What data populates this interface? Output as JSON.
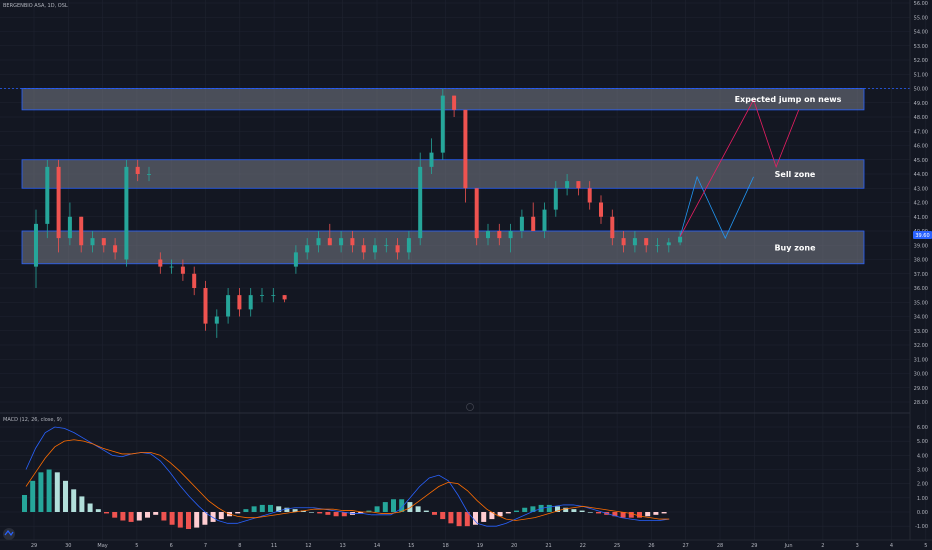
{
  "header": {
    "symbol_title": "BERGENBIO ASA, 1D, OSL"
  },
  "macd_title": "MACD (12, 26, close, 9)",
  "price_tag": "39.60",
  "colors": {
    "up": "#26a69a",
    "down": "#ef5350",
    "zone_fill": "#787b86",
    "zone_border": "#2962ff",
    "macd_line": "#2962ff",
    "signal_line": "#ff6d00",
    "bg": "#131722",
    "grid": "#1f2330"
  },
  "chart_data": [
    {
      "type": "candlestick",
      "title": "",
      "price_axis": {
        "min": 28,
        "max": 56,
        "ticks": [
          "56.00",
          "55.00",
          "54.00",
          "53.00",
          "52.00",
          "51.00",
          "50.00",
          "49.00",
          "48.00",
          "47.00",
          "46.00",
          "45.00",
          "44.00",
          "43.00",
          "42.00",
          "41.00",
          "40.00",
          "39.00",
          "38.00",
          "37.00",
          "36.00",
          "35.00",
          "34.00",
          "33.00",
          "32.00",
          "31.00",
          "30.00",
          "29.00",
          "28.00"
        ]
      },
      "time_axis_labels": [
        "29",
        "30",
        "May",
        "5",
        "6",
        "7",
        "8",
        "11",
        "12",
        "13",
        "14",
        "15",
        "18",
        "19",
        "20",
        "21",
        "22",
        "25",
        "26",
        "27",
        "28",
        "29",
        "Jun",
        "2",
        "3",
        "4",
        "5",
        "8",
        "9"
      ],
      "candles": [
        [
          37.5,
          41.5,
          36.0,
          40.5
        ],
        [
          40.5,
          45.0,
          39.5,
          44.5
        ],
        [
          44.5,
          45.0,
          38.5,
          39.5
        ],
        [
          39.5,
          42.0,
          39.0,
          41.0
        ],
        [
          41.0,
          41.0,
          38.5,
          39.0
        ],
        [
          39.0,
          40.0,
          38.5,
          39.5
        ],
        [
          39.5,
          39.5,
          38.5,
          39.0
        ],
        [
          39.0,
          39.5,
          38.0,
          38.5
        ],
        [
          38.0,
          45.0,
          37.5,
          44.5
        ],
        [
          44.5,
          45.0,
          43.5,
          44.0
        ],
        [
          44.0,
          44.5,
          43.5,
          44.0
        ],
        [
          38.0,
          38.5,
          37.0,
          37.5
        ],
        [
          37.5,
          38.0,
          37.0,
          37.5
        ],
        [
          37.5,
          38.0,
          36.5,
          37.0
        ],
        [
          37.0,
          37.5,
          35.5,
          36.0
        ],
        [
          36.0,
          36.5,
          33.0,
          33.5
        ],
        [
          33.5,
          34.5,
          32.5,
          34.0
        ],
        [
          34.0,
          36.0,
          33.5,
          35.5
        ],
        [
          35.5,
          36.0,
          34.0,
          34.5
        ],
        [
          34.5,
          36.0,
          34.0,
          35.5
        ],
        [
          35.5,
          36.0,
          35.0,
          35.5
        ],
        [
          35.5,
          36.0,
          35.0,
          35.5
        ],
        [
          35.5,
          35.5,
          35.0,
          35.2
        ],
        [
          37.5,
          39.0,
          37.0,
          38.5
        ],
        [
          38.5,
          39.5,
          38.0,
          39.0
        ],
        [
          39.0,
          40.0,
          38.5,
          39.5
        ],
        [
          39.5,
          40.5,
          39.0,
          39.0
        ],
        [
          39.0,
          40.0,
          38.5,
          39.5
        ],
        [
          39.5,
          40.0,
          38.5,
          39.0
        ],
        [
          39.0,
          39.5,
          38.0,
          38.5
        ],
        [
          38.5,
          39.5,
          38.0,
          39.0
        ],
        [
          39.0,
          39.5,
          38.5,
          39.0
        ],
        [
          39.0,
          39.5,
          38.0,
          38.5
        ],
        [
          38.5,
          40.0,
          38.0,
          39.5
        ],
        [
          39.5,
          45.5,
          39.0,
          44.5
        ],
        [
          44.5,
          46.5,
          44.0,
          45.5
        ],
        [
          45.5,
          50.0,
          45.0,
          49.5
        ],
        [
          49.5,
          49.5,
          48.0,
          48.5
        ],
        [
          48.5,
          48.5,
          42.0,
          43.0
        ],
        [
          43.0,
          43.0,
          39.0,
          39.5
        ],
        [
          39.5,
          40.5,
          39.0,
          40.0
        ],
        [
          40.0,
          40.5,
          39.0,
          39.5
        ],
        [
          39.5,
          40.5,
          38.5,
          40.0
        ],
        [
          40.0,
          41.5,
          39.5,
          41.0
        ],
        [
          41.0,
          42.0,
          40.0,
          40.0
        ],
        [
          40.0,
          42.0,
          39.5,
          41.5
        ],
        [
          41.5,
          43.5,
          41.0,
          43.0
        ],
        [
          43.0,
          44.0,
          42.5,
          43.5
        ],
        [
          43.5,
          43.5,
          42.5,
          43.0
        ],
        [
          43.0,
          43.5,
          41.5,
          42.0
        ],
        [
          42.0,
          42.5,
          40.5,
          41.0
        ],
        [
          41.0,
          41.5,
          39.0,
          39.5
        ],
        [
          39.5,
          40.0,
          38.5,
          39.0
        ],
        [
          39.0,
          40.0,
          38.5,
          39.5
        ],
        [
          39.5,
          39.5,
          38.5,
          39.0
        ],
        [
          39.0,
          39.5,
          38.5,
          39.0
        ],
        [
          39.0,
          39.5,
          38.5,
          39.2
        ],
        [
          39.2,
          40.0,
          39.0,
          39.6
        ]
      ],
      "zones": [
        {
          "name": "Expected jump on news",
          "low": 48.5,
          "high": 50.0
        },
        {
          "name": "Sell zone",
          "low": 43.0,
          "high": 45.0
        },
        {
          "name": "Buy zone",
          "low": 37.7,
          "high": 40.0
        }
      ],
      "projection": {
        "blue": [
          [
            57,
            39.6
          ],
          [
            58.5,
            43.8
          ],
          [
            61,
            39.5
          ],
          [
            63.5,
            43.8
          ]
        ],
        "red": [
          [
            57,
            39.6
          ],
          [
            63.5,
            49.2
          ],
          [
            65.5,
            44.5
          ],
          [
            67.5,
            48.5
          ]
        ]
      },
      "dashed_level": 50.0
    },
    {
      "type": "macd",
      "title": "MACD (12, 26, close, 9)",
      "axis": {
        "min": -2,
        "max": 7,
        "ticks": [
          "6.00",
          "5.00",
          "4.00",
          "3.00",
          "2.00",
          "1.00",
          "0.00",
          "-1.00"
        ]
      },
      "histogram": [
        1.2,
        2.2,
        2.8,
        3.0,
        2.8,
        2.2,
        1.6,
        1.1,
        0.6,
        0.2,
        -0.1,
        -0.4,
        -0.6,
        -0.7,
        -0.6,
        -0.4,
        -0.2,
        -0.6,
        -0.9,
        -1.1,
        -1.2,
        -1.1,
        -0.9,
        -0.7,
        -0.5,
        -0.3,
        -0.1,
        0.2,
        0.4,
        0.5,
        0.5,
        0.4,
        0.3,
        0.2,
        0.1,
        0.0,
        -0.1,
        -0.2,
        -0.3,
        -0.3,
        -0.2,
        -0.1,
        0.1,
        0.4,
        0.7,
        0.9,
        0.9,
        0.7,
        0.4,
        0.1,
        -0.2,
        -0.5,
        -0.8,
        -1.0,
        -1.0,
        -0.9,
        -0.7,
        -0.5,
        -0.3,
        -0.1,
        0.1,
        0.3,
        0.4,
        0.5,
        0.5,
        0.4,
        0.3,
        0.2,
        0.1,
        0.0,
        -0.1,
        -0.2,
        -0.3,
        -0.4,
        -0.4,
        -0.4,
        -0.3,
        -0.2,
        -0.1
      ],
      "macd": [
        3.0,
        4.5,
        5.6,
        6.0,
        5.9,
        5.6,
        5.2,
        4.8,
        4.4,
        4.0,
        3.9,
        4.1,
        4.2,
        4.1,
        3.6,
        2.8,
        1.9,
        1.1,
        0.4,
        -0.2,
        -0.6,
        -0.8,
        -0.8,
        -0.6,
        -0.4,
        -0.2,
        0.0,
        0.2,
        0.3,
        0.3,
        0.3,
        0.2,
        0.1,
        0.0,
        -0.1,
        -0.1,
        -0.2,
        -0.2,
        -0.2,
        0.2,
        1.0,
        1.8,
        2.4,
        2.6,
        2.2,
        1.2,
        0.0,
        -0.8,
        -1.0,
        -1.0,
        -0.8,
        -0.5,
        -0.2,
        0.1,
        0.3,
        0.4,
        0.5,
        0.5,
        0.4,
        0.2,
        0.0,
        -0.2,
        -0.4,
        -0.5,
        -0.6,
        -0.6,
        -0.6,
        -0.5
      ],
      "signal": [
        1.8,
        2.8,
        3.8,
        4.6,
        5.0,
        5.1,
        5.0,
        4.8,
        4.5,
        4.3,
        4.1,
        4.1,
        4.2,
        4.2,
        4.0,
        3.5,
        2.9,
        2.2,
        1.5,
        0.8,
        0.3,
        -0.1,
        -0.3,
        -0.4,
        -0.4,
        -0.3,
        -0.2,
        -0.1,
        0.0,
        0.1,
        0.2,
        0.2,
        0.2,
        0.1,
        0.1,
        0.0,
        0.0,
        -0.1,
        -0.1,
        0.0,
        0.3,
        0.8,
        1.3,
        1.8,
        2.1,
        2.0,
        1.5,
        0.8,
        0.2,
        -0.2,
        -0.5,
        -0.6,
        -0.5,
        -0.4,
        -0.2,
        0.0,
        0.2,
        0.3,
        0.4,
        0.3,
        0.2,
        0.1,
        0.0,
        -0.1,
        -0.3,
        -0.4,
        -0.5,
        -0.5
      ]
    }
  ]
}
